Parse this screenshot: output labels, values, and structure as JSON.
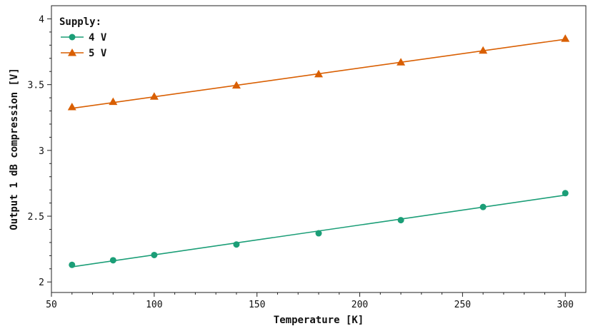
{
  "chart_data": {
    "type": "scatter",
    "xlabel": "Temperature [K]",
    "ylabel": "Output 1 dB compression [V]",
    "xlim": [
      50,
      310
    ],
    "ylim": [
      1.92,
      4.1
    ],
    "xticks": [
      50,
      100,
      150,
      200,
      250,
      300
    ],
    "yticks": [
      2,
      2.5,
      3,
      3.5,
      4
    ],
    "xtick_labels": [
      "50",
      "100",
      "150",
      "200",
      "250",
      "300"
    ],
    "ytick_labels": [
      "2",
      "2.5",
      "3",
      "3.5",
      "4"
    ],
    "grid": false,
    "legend": {
      "title": "Supply:",
      "position": "top-left"
    },
    "series": [
      {
        "name": "4 V",
        "color": "#1b9e77",
        "marker": "circle",
        "x": [
          60,
          80,
          100,
          140,
          180,
          220,
          260,
          300
        ],
        "y": [
          2.13,
          2.165,
          2.205,
          2.285,
          2.37,
          2.47,
          2.57,
          2.675
        ],
        "fit": {
          "x": [
            60,
            300
          ],
          "y": [
            2.115,
            2.66
          ]
        }
      },
      {
        "name": "5 V",
        "color": "#d95f02",
        "marker": "triangle",
        "x": [
          60,
          80,
          100,
          140,
          180,
          220,
          260,
          300
        ],
        "y": [
          3.33,
          3.37,
          3.41,
          3.495,
          3.58,
          3.67,
          3.76,
          3.85
        ],
        "fit": {
          "x": [
            60,
            300
          ],
          "y": [
            3.32,
            3.845
          ]
        }
      }
    ]
  }
}
